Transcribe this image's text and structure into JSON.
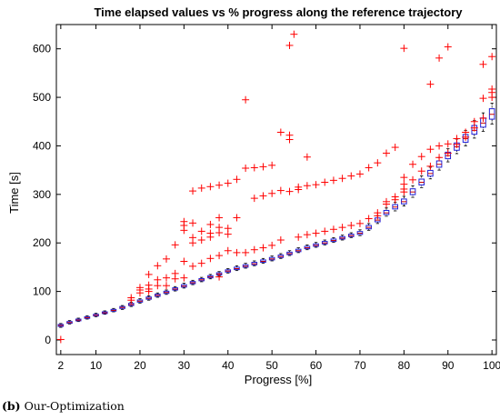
{
  "chart_data": {
    "type": "box",
    "title": "Time elapsed values vs % progress along the reference trajectory",
    "xlabel": "Progress [%]",
    "ylabel": "Time [s]",
    "xlim": [
      1,
      101
    ],
    "ylim": [
      -30,
      650
    ],
    "xticks": [
      2,
      10,
      20,
      30,
      40,
      50,
      60,
      70,
      80,
      90,
      100
    ],
    "yticks": [
      0,
      100,
      200,
      300,
      400,
      500,
      600
    ],
    "grid": false,
    "box_color": "#1f1fd8",
    "median_color": "#cc0000",
    "outlier_color": "#ff0000",
    "x": [
      2,
      4,
      6,
      8,
      10,
      12,
      14,
      16,
      18,
      20,
      22,
      24,
      26,
      28,
      30,
      32,
      34,
      36,
      38,
      40,
      42,
      44,
      46,
      48,
      50,
      52,
      54,
      56,
      58,
      60,
      62,
      64,
      66,
      68,
      70,
      72,
      74,
      76,
      78,
      80,
      82,
      84,
      86,
      88,
      90,
      92,
      94,
      96,
      98,
      100
    ],
    "medians": [
      30,
      36,
      41,
      46,
      51,
      56,
      61,
      67,
      73,
      80,
      86,
      92,
      98,
      105,
      111,
      118,
      124,
      130,
      136,
      142,
      147,
      152,
      157,
      162,
      167,
      172,
      178,
      184,
      190,
      195,
      200,
      205,
      210,
      215,
      220,
      232,
      247,
      262,
      274,
      285,
      305,
      325,
      343,
      362,
      380,
      398,
      415,
      432,
      447,
      465
    ],
    "whisker_low": [
      26,
      33,
      38,
      43,
      48,
      53,
      58,
      63,
      69,
      76,
      82,
      88,
      94,
      101,
      107,
      114,
      120,
      126,
      132,
      138,
      143,
      148,
      153,
      158,
      163,
      168,
      174,
      180,
      186,
      191,
      196,
      201,
      206,
      211,
      215,
      226,
      240,
      255,
      266,
      276,
      294,
      314,
      332,
      350,
      367,
      384,
      400,
      416,
      430,
      445
    ],
    "whisker_high": [
      34,
      40,
      45,
      50,
      55,
      60,
      65,
      71,
      78,
      85,
      91,
      97,
      103,
      110,
      117,
      123,
      129,
      135,
      141,
      147,
      153,
      158,
      163,
      168,
      173,
      178,
      184,
      190,
      196,
      201,
      206,
      211,
      216,
      221,
      227,
      240,
      256,
      272,
      284,
      296,
      318,
      338,
      356,
      376,
      394,
      414,
      432,
      452,
      468,
      488
    ],
    "outliers": [
      [
        2,
        1
      ],
      [
        18,
        82
      ],
      [
        18,
        87
      ],
      [
        20,
        97
      ],
      [
        20,
        103
      ],
      [
        20,
        108
      ],
      [
        22,
        135
      ],
      [
        22,
        113
      ],
      [
        22,
        105
      ],
      [
        22,
        100
      ],
      [
        24,
        153
      ],
      [
        24,
        124
      ],
      [
        24,
        112
      ],
      [
        26,
        167
      ],
      [
        26,
        128
      ],
      [
        26,
        112
      ],
      [
        28,
        196
      ],
      [
        28,
        137
      ],
      [
        28,
        126
      ],
      [
        30,
        244
      ],
      [
        30,
        236
      ],
      [
        30,
        226
      ],
      [
        30,
        162
      ],
      [
        30,
        128
      ],
      [
        32,
        307
      ],
      [
        32,
        241
      ],
      [
        32,
        211
      ],
      [
        32,
        200
      ],
      [
        32,
        152
      ],
      [
        34,
        313
      ],
      [
        34,
        224
      ],
      [
        34,
        206
      ],
      [
        34,
        158
      ],
      [
        36,
        316
      ],
      [
        36,
        238
      ],
      [
        36,
        220
      ],
      [
        36,
        212
      ],
      [
        36,
        168
      ],
      [
        38,
        319
      ],
      [
        38,
        252
      ],
      [
        38,
        232
      ],
      [
        38,
        221
      ],
      [
        38,
        174
      ],
      [
        38,
        130
      ],
      [
        40,
        323
      ],
      [
        40,
        230
      ],
      [
        40,
        218
      ],
      [
        40,
        184
      ],
      [
        42,
        331
      ],
      [
        42,
        252
      ],
      [
        42,
        180
      ],
      [
        44,
        495
      ],
      [
        44,
        354
      ],
      [
        44,
        180
      ],
      [
        46,
        355
      ],
      [
        46,
        292
      ],
      [
        46,
        186
      ],
      [
        48,
        357
      ],
      [
        48,
        297
      ],
      [
        48,
        190
      ],
      [
        50,
        360
      ],
      [
        50,
        302
      ],
      [
        50,
        195
      ],
      [
        52,
        428
      ],
      [
        52,
        308
      ],
      [
        52,
        206
      ],
      [
        54,
        607
      ],
      [
        54,
        422
      ],
      [
        54,
        413
      ],
      [
        54,
        306
      ],
      [
        55,
        630
      ],
      [
        56,
        315
      ],
      [
        56,
        310
      ],
      [
        56,
        212
      ],
      [
        58,
        377
      ],
      [
        58,
        318
      ],
      [
        58,
        217
      ],
      [
        60,
        320
      ],
      [
        60,
        220
      ],
      [
        62,
        325
      ],
      [
        62,
        224
      ],
      [
        64,
        329
      ],
      [
        64,
        228
      ],
      [
        66,
        333
      ],
      [
        66,
        232
      ],
      [
        68,
        338
      ],
      [
        68,
        236
      ],
      [
        70,
        342
      ],
      [
        70,
        240
      ],
      [
        72,
        355
      ],
      [
        72,
        250
      ],
      [
        74,
        365
      ],
      [
        74,
        262
      ],
      [
        74,
        256
      ],
      [
        76,
        385
      ],
      [
        76,
        285
      ],
      [
        76,
        280
      ],
      [
        78,
        397
      ],
      [
        78,
        295
      ],
      [
        78,
        289
      ],
      [
        80,
        601
      ],
      [
        80,
        335
      ],
      [
        80,
        321
      ],
      [
        80,
        311
      ],
      [
        80,
        305
      ],
      [
        82,
        362
      ],
      [
        82,
        330
      ],
      [
        84,
        378
      ],
      [
        84,
        348
      ],
      [
        86,
        527
      ],
      [
        86,
        393
      ],
      [
        86,
        358
      ],
      [
        88,
        581
      ],
      [
        88,
        400
      ],
      [
        88,
        376
      ],
      [
        90,
        604
      ],
      [
        90,
        404
      ],
      [
        90,
        385
      ],
      [
        92,
        415
      ],
      [
        92,
        403
      ],
      [
        94,
        428
      ],
      [
        94,
        418
      ],
      [
        96,
        450
      ],
      [
        96,
        437
      ],
      [
        98,
        568
      ],
      [
        98,
        498
      ],
      [
        98,
        457
      ],
      [
        100,
        584
      ],
      [
        100,
        517
      ],
      [
        100,
        510
      ],
      [
        100,
        500
      ]
    ]
  },
  "caption": {
    "label": "(b)",
    "text": "Our-Optimization"
  }
}
